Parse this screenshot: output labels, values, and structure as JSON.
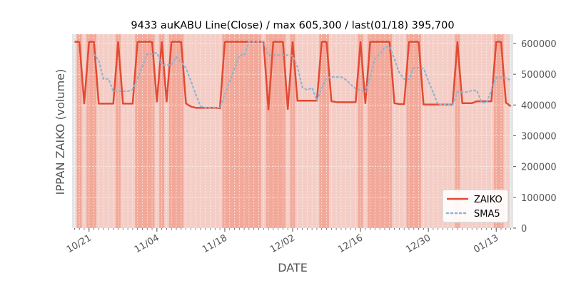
{
  "chart_data": {
    "type": "line",
    "title": "9433 auKABU Line(Close) / max 605,300 / last(01/18) 395,700",
    "xlabel": "DATE",
    "ylabel": "IPPAN ZAIKO (volume)",
    "ylim": [
      0,
      630000
    ],
    "yticks": [
      0,
      100000,
      200000,
      300000,
      400000,
      500000,
      600000
    ],
    "ytick_labels": [
      "0",
      "100000",
      "200000",
      "300000",
      "400000",
      "500000",
      "600000"
    ],
    "xlim": [
      -0.5,
      90.5
    ],
    "xticks": [
      {
        "day": 3,
        "label": "10/21"
      },
      {
        "day": 17,
        "label": "11/04"
      },
      {
        "day": 31,
        "label": "11/18"
      },
      {
        "day": 45,
        "label": "12/02"
      },
      {
        "day": 59,
        "label": "12/16"
      },
      {
        "day": 73,
        "label": "12/30"
      },
      {
        "day": 87,
        "label": "01/13"
      }
    ],
    "grid": true,
    "legend_position": "lower-right",
    "series": [
      {
        "name": "ZAIKO",
        "color": "#e24a33",
        "style": "solid",
        "values": [
          [
            0,
            605300
          ],
          [
            1,
            605300
          ],
          [
            2,
            405000
          ],
          [
            3,
            605300
          ],
          [
            4,
            605300
          ],
          [
            5,
            404500
          ],
          [
            6,
            404500
          ],
          [
            7,
            404500
          ],
          [
            8,
            404500
          ],
          [
            9,
            605000
          ],
          [
            10,
            404500
          ],
          [
            11,
            404500
          ],
          [
            12,
            404500
          ],
          [
            13,
            605300
          ],
          [
            14,
            605300
          ],
          [
            15,
            605300
          ],
          [
            16,
            605300
          ],
          [
            17,
            411000
          ],
          [
            18,
            605000
          ],
          [
            19,
            411000
          ],
          [
            20,
            605300
          ],
          [
            21,
            605300
          ],
          [
            22,
            605300
          ],
          [
            23,
            405000
          ],
          [
            24,
            395000
          ],
          [
            25,
            391000
          ],
          [
            26,
            391000
          ],
          [
            27,
            391000
          ],
          [
            28,
            391000
          ],
          [
            29,
            391000
          ],
          [
            30,
            389500
          ],
          [
            31,
            605300
          ],
          [
            32,
            605300
          ],
          [
            33,
            605300
          ],
          [
            34,
            605300
          ],
          [
            35,
            605300
          ],
          [
            36,
            605300
          ],
          [
            37,
            605300
          ],
          [
            38,
            605300
          ],
          [
            39,
            605300
          ],
          [
            40,
            386000
          ],
          [
            41,
            605300
          ],
          [
            42,
            605300
          ],
          [
            43,
            605300
          ],
          [
            44,
            387000
          ],
          [
            45,
            605000
          ],
          [
            46,
            414000
          ],
          [
            47,
            414000
          ],
          [
            48,
            414000
          ],
          [
            49,
            414000
          ],
          [
            50,
            414000
          ],
          [
            51,
            605300
          ],
          [
            52,
            605300
          ],
          [
            53,
            412000
          ],
          [
            54,
            409500
          ],
          [
            55,
            409000
          ],
          [
            56,
            409000
          ],
          [
            57,
            409000
          ],
          [
            58,
            409000
          ],
          [
            59,
            605000
          ],
          [
            60,
            406000
          ],
          [
            61,
            605300
          ],
          [
            62,
            605300
          ],
          [
            63,
            605300
          ],
          [
            64,
            605300
          ],
          [
            65,
            605300
          ],
          [
            66,
            406000
          ],
          [
            67,
            403000
          ],
          [
            68,
            403000
          ],
          [
            69,
            605300
          ],
          [
            70,
            605300
          ],
          [
            71,
            605300
          ],
          [
            72,
            401500
          ],
          [
            73,
            401500
          ],
          [
            74,
            401500
          ],
          [
            75,
            401500
          ],
          [
            76,
            401500
          ],
          [
            77,
            401500
          ],
          [
            78,
            401500
          ],
          [
            79,
            605000
          ],
          [
            80,
            406000
          ],
          [
            81,
            406000
          ],
          [
            82,
            406000
          ],
          [
            83,
            412000
          ],
          [
            84,
            412000
          ],
          [
            85,
            412000
          ],
          [
            86,
            412000
          ],
          [
            87,
            605300
          ],
          [
            88,
            605300
          ],
          [
            89,
            408000
          ],
          [
            90,
            395700
          ]
        ]
      },
      {
        "name": "SMA5",
        "color": "#8eb4d4",
        "style": "dotted",
        "values": [
          [
            4,
            565000
          ],
          [
            5,
            545000
          ],
          [
            6,
            484000
          ],
          [
            7,
            485000
          ],
          [
            8,
            445000
          ],
          [
            9,
            445000
          ],
          [
            10,
            445000
          ],
          [
            11,
            445000
          ],
          [
            12,
            450000
          ],
          [
            13,
            486000
          ],
          [
            14,
            525000
          ],
          [
            15,
            566000
          ],
          [
            16,
            566000
          ],
          [
            17,
            570000
          ],
          [
            18,
            530000
          ],
          [
            19,
            530000
          ],
          [
            20,
            531000
          ],
          [
            21,
            556000
          ],
          [
            22,
            540000
          ],
          [
            23,
            520000
          ],
          [
            24,
            479000
          ],
          [
            25,
            435000
          ],
          [
            26,
            396000
          ],
          [
            27,
            392000
          ],
          [
            28,
            392000
          ],
          [
            29,
            392000
          ],
          [
            30,
            391000
          ],
          [
            31,
            434000
          ],
          [
            32,
            476000
          ],
          [
            33,
            519000
          ],
          [
            34,
            562000
          ],
          [
            35,
            562000
          ],
          [
            36,
            605300
          ],
          [
            37,
            605300
          ],
          [
            38,
            605300
          ],
          [
            39,
            605300
          ],
          [
            40,
            562000
          ],
          [
            41,
            562000
          ],
          [
            42,
            562000
          ],
          [
            43,
            562000
          ],
          [
            44,
            562000
          ],
          [
            45,
            560000
          ],
          [
            46,
            524000
          ],
          [
            47,
            457000
          ],
          [
            48,
            449000
          ],
          [
            49,
            456000
          ],
          [
            50,
            415000
          ],
          [
            51,
            456000
          ],
          [
            52,
            487000
          ],
          [
            53,
            491000
          ],
          [
            54,
            491000
          ],
          [
            55,
            491000
          ],
          [
            56,
            482000
          ],
          [
            57,
            467000
          ],
          [
            58,
            453000
          ],
          [
            59,
            449000
          ],
          [
            60,
            440000
          ],
          [
            61,
            492000
          ],
          [
            62,
            550000
          ],
          [
            63,
            566000
          ],
          [
            64,
            587000
          ],
          [
            65,
            590000
          ],
          [
            66,
            550000
          ],
          [
            67,
            505000
          ],
          [
            68,
            484000
          ],
          [
            69,
            484000
          ],
          [
            70,
            521000
          ],
          [
            71,
            521000
          ],
          [
            72,
            519000
          ],
          [
            73,
            479000
          ],
          [
            74,
            440000
          ],
          [
            75,
            401500
          ],
          [
            76,
            401500
          ],
          [
            77,
            401500
          ],
          [
            78,
            401500
          ],
          [
            79,
            442000
          ],
          [
            80,
            442000
          ],
          [
            81,
            442000
          ],
          [
            82,
            447000
          ],
          [
            83,
            447000
          ],
          [
            84,
            408000
          ],
          [
            85,
            408000
          ],
          [
            86,
            448000
          ],
          [
            87,
            490000
          ],
          [
            88,
            490000
          ],
          [
            89,
            488000
          ],
          [
            90,
            480000
          ]
        ]
      }
    ],
    "bands": {
      "strong_color": "#f2a99a",
      "light_color": "#f4cec6",
      "dark": [
        [
          0.5,
          1.5
        ],
        [
          2.5,
          4.5
        ],
        [
          8.5,
          9.5
        ],
        [
          12.5,
          16.5
        ],
        [
          17.5,
          18.5
        ],
        [
          19.5,
          22.5
        ],
        [
          30.5,
          38.5
        ],
        [
          39.5,
          40.5
        ],
        [
          40.5,
          43.5
        ],
        [
          44.5,
          45.5
        ],
        [
          50.5,
          52.5
        ],
        [
          58.5,
          59.5
        ],
        [
          60.5,
          65.5
        ],
        [
          68.5,
          71.5
        ],
        [
          78.5,
          79.5
        ],
        [
          86.5,
          88.5
        ]
      ]
    },
    "legend": [
      {
        "name": "ZAIKO",
        "style": "solid"
      },
      {
        "name": "SMA5",
        "style": "dotted"
      }
    ]
  }
}
